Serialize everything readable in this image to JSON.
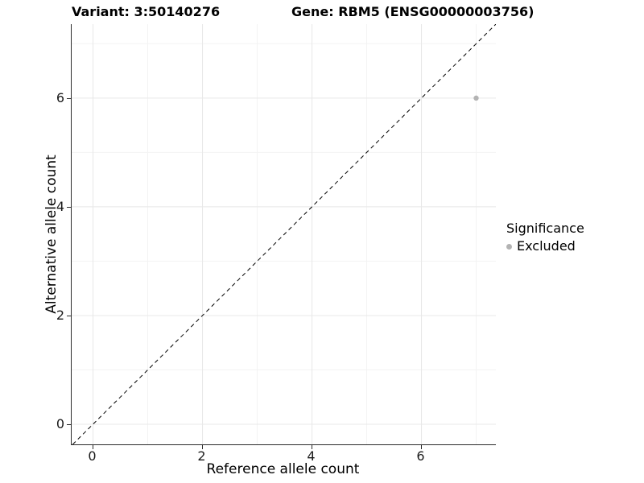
{
  "chart_data": {
    "type": "scatter",
    "titles": {
      "left": "Variant: 3:50140276",
      "right": "Gene: RBM5 (ENSG00000003756)"
    },
    "xlabel": "Reference allele count",
    "ylabel": "Alternative allele count",
    "xlim": [
      -0.39,
      7.36
    ],
    "ylim": [
      -0.37,
      7.36
    ],
    "x_ticks": {
      "major": [
        0,
        2,
        4,
        6
      ],
      "minor": [
        1,
        3,
        5,
        7
      ]
    },
    "y_ticks": {
      "major": [
        0,
        2,
        4,
        6
      ],
      "minor": [
        1,
        3,
        5,
        7
      ]
    },
    "grid": "major and minor gridlines, white panel background",
    "series": [
      {
        "name": "Excluded",
        "color": "#b3b3b3",
        "points": [
          {
            "x": 7,
            "y": 6
          }
        ]
      }
    ],
    "reference_line": {
      "kind": "identity y=x",
      "style": "dashed",
      "color": "#000000"
    },
    "legend": {
      "title": "Significance",
      "position": "right",
      "entries": [
        {
          "label": "Excluded",
          "color": "#b3b3b3"
        }
      ]
    }
  },
  "colors": {
    "background": "#ffffff",
    "grid_major": "#e8e8e8",
    "grid_minor": "#f3f3f3",
    "axis_line": "#2b2b2b",
    "tick_label": "#1a1a1a",
    "text": "#000000"
  }
}
